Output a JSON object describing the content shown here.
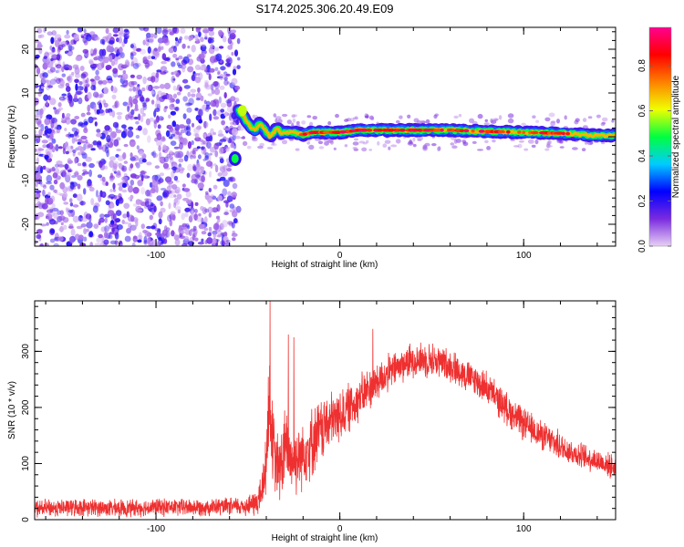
{
  "chart_data": [
    {
      "type": "heatmap",
      "title": "S174.2025.306.20.49.E09",
      "xlabel": "Height of straight line (km)",
      "ylabel": "Frequency (Hz)",
      "xlim": [
        -166,
        150
      ],
      "ylim": [
        -25,
        25
      ],
      "xticks": [
        -100,
        0,
        100
      ],
      "yticks": [
        -20,
        -10,
        0,
        10,
        20
      ],
      "colorbar": {
        "label": "Normalized spectral amplitude",
        "range": [
          0.0,
          0.97
        ],
        "ticks": [
          0.0,
          0.2,
          0.4,
          0.6,
          0.8
        ],
        "colormap": [
          "#e8d0f5",
          "#7a2be0",
          "#0000ff",
          "#00ccff",
          "#00ff40",
          "#f0ff00",
          "#ff8000",
          "#ff0000",
          "#ff0090"
        ]
      },
      "noise_region_x": [
        -166,
        -55
      ],
      "ridge": {
        "x": [
          -55,
          -52,
          -50,
          -48,
          -46,
          -44,
          -42,
          -40,
          -38,
          -36,
          -34,
          -32,
          -30,
          -25,
          -20,
          -15,
          -10,
          -5,
          0,
          10,
          20,
          40,
          60,
          80,
          100,
          120,
          140,
          150
        ],
        "y": [
          6,
          4.5,
          3,
          2,
          1.5,
          3,
          2.5,
          1,
          0,
          1,
          2,
          1,
          1,
          1,
          0.5,
          1,
          1,
          1,
          1,
          1.5,
          1.5,
          1.5,
          1.5,
          1.2,
          1,
          0.8,
          0.3,
          0.3
        ],
        "amplitude": [
          0.6,
          0.7,
          0.6,
          0.55,
          0.55,
          0.6,
          0.55,
          0.6,
          0.55,
          0.5,
          0.55,
          0.5,
          0.65,
          0.9,
          0.85,
          0.85,
          0.9,
          0.9,
          0.9,
          0.95,
          0.95,
          0.9,
          0.95,
          0.85,
          0.9,
          0.75,
          0.55,
          0.45
        ]
      },
      "secondary_blob": {
        "x": -57,
        "y": -5,
        "amplitude": 0.5
      }
    },
    {
      "type": "line",
      "xlabel": "Height of straight line (km)",
      "ylabel": "SNR (10 * v/v)",
      "xlim": [
        -166,
        150
      ],
      "ylim": [
        0,
        390
      ],
      "xticks": [
        -100,
        0,
        100
      ],
      "yticks": [
        0,
        100,
        200,
        300
      ],
      "color": "#ee3030",
      "series": [
        {
          "name": "SNR",
          "x": [
            -166,
            -140,
            -120,
            -100,
            -80,
            -60,
            -50,
            -45,
            -42,
            -40,
            -39,
            -38,
            -37,
            -35,
            -33,
            -31,
            -30,
            -28,
            -25,
            -20,
            -15,
            -10,
            -5,
            0,
            10,
            20,
            30,
            40,
            50,
            60,
            70,
            80,
            90,
            100,
            110,
            120,
            130,
            140,
            150
          ],
          "mean": [
            20,
            22,
            20,
            22,
            22,
            23,
            25,
            30,
            55,
            110,
            180,
            220,
            150,
            100,
            90,
            110,
            130,
            115,
            105,
            120,
            140,
            160,
            175,
            185,
            215,
            245,
            270,
            285,
            285,
            275,
            255,
            235,
            200,
            170,
            150,
            130,
            115,
            105,
            92
          ],
          "spread": [
            15,
            15,
            15,
            15,
            15,
            15,
            18,
            25,
            40,
            60,
            80,
            90,
            70,
            60,
            60,
            70,
            70,
            60,
            60,
            60,
            60,
            55,
            50,
            45,
            40,
            35,
            30,
            30,
            30,
            28,
            28,
            28,
            28,
            28,
            25,
            25,
            22,
            22,
            20
          ]
        }
      ],
      "peaks": [
        {
          "x": -38,
          "y": 390
        },
        {
          "x": -28,
          "y": 330
        },
        {
          "x": -25,
          "y": 325
        },
        {
          "x": 18,
          "y": 340
        }
      ]
    }
  ]
}
